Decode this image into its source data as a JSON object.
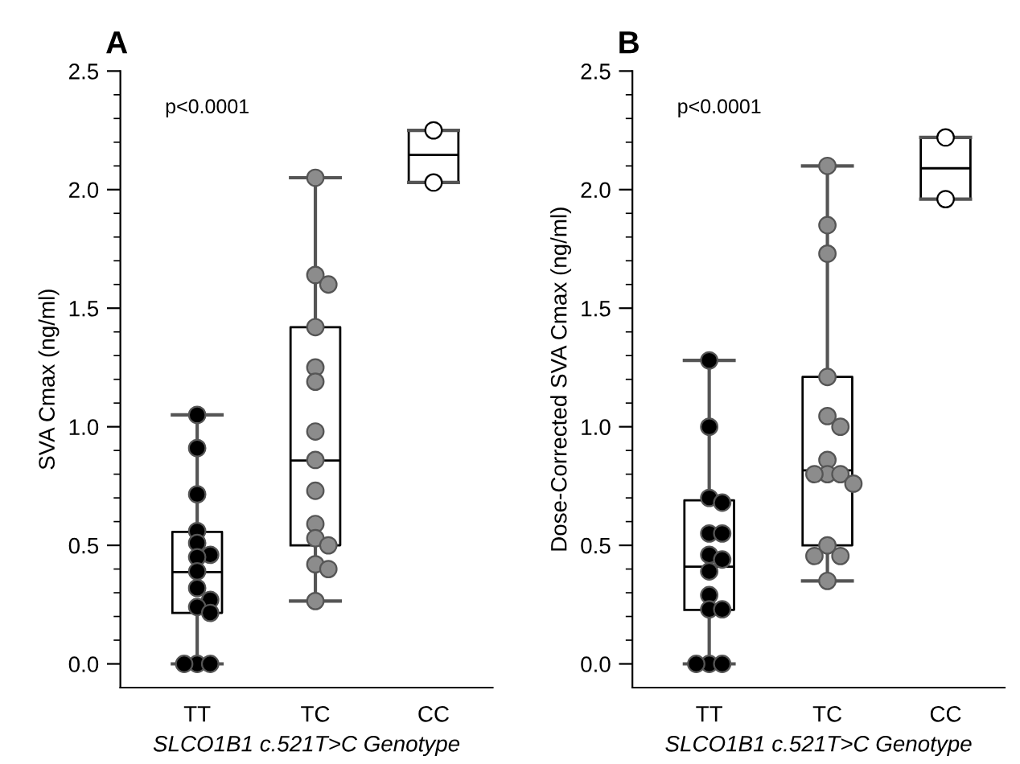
{
  "chart_data": [
    {
      "type": "box",
      "title": "A",
      "ylabel": "SVA Cmax (ng/ml)",
      "xlabel": "SLCO1B1 c.521T>C Genotype",
      "annotations": [
        "p<0.0001"
      ],
      "categories": [
        "TT",
        "TC",
        "CC"
      ],
      "boxes": [
        {
          "low": 0,
          "q1": 0.215,
          "median": 0.387,
          "q3": 0.557,
          "high": 1.05
        },
        {
          "low": 0.265,
          "q1": 0.5,
          "median": 0.858,
          "q3": 1.42,
          "high": 2.05
        },
        {
          "low": 2.03,
          "q1": 2.03,
          "median": 2.146,
          "q3": 2.25,
          "high": 2.25
        }
      ],
      "series": [
        {
          "type": "scatter",
          "color": "#000000",
          "x": [
            "TT",
            "TT",
            "TT",
            "TT",
            "TT",
            "TT",
            "TT",
            "TT",
            "TT",
            "TT",
            "TT",
            "TT",
            "TT",
            "TT",
            "TT"
          ],
          "values": [
            1.05,
            0.91,
            0.715,
            0.56,
            0.51,
            0.46,
            0.45,
            0.39,
            0.32,
            0.27,
            0.24,
            0.215,
            0,
            0,
            0
          ]
        },
        {
          "type": "scatter",
          "color": "#8c8c8c",
          "x": [
            "TC",
            "TC",
            "TC",
            "TC",
            "TC",
            "TC",
            "TC",
            "TC",
            "TC",
            "TC",
            "TC",
            "TC",
            "TC",
            "TC",
            "TC"
          ],
          "values": [
            2.05,
            1.64,
            1.6,
            1.42,
            1.25,
            1.19,
            0.98,
            0.86,
            0.73,
            0.59,
            0.53,
            0.5,
            0.42,
            0.4,
            0.265
          ]
        },
        {
          "type": "scatter",
          "color": "#ffffff",
          "x": [
            "CC",
            "CC"
          ],
          "values": [
            2.25,
            2.03
          ]
        }
      ],
      "ylim": [
        -0.1,
        2.5
      ],
      "yticks": [
        {
          "value": 0,
          "label": "0.0"
        },
        {
          "value": 0.1,
          "label": null
        },
        {
          "value": 0.2,
          "label": null
        },
        {
          "value": 0.3,
          "label": null
        },
        {
          "value": 0.4,
          "label": null
        },
        {
          "value": 0.5,
          "label": "0.5"
        },
        {
          "value": 0.6,
          "label": null
        },
        {
          "value": 0.7,
          "label": null
        },
        {
          "value": 0.8,
          "label": null
        },
        {
          "value": 0.9,
          "label": null
        },
        {
          "value": 1,
          "label": "1.0"
        },
        {
          "value": 1.1,
          "label": null
        },
        {
          "value": 1.2,
          "label": null
        },
        {
          "value": 1.3,
          "label": null
        },
        {
          "value": 1.4,
          "label": null
        },
        {
          "value": 1.5,
          "label": "1.5"
        },
        {
          "value": 1.6,
          "label": null
        },
        {
          "value": 1.7,
          "label": null
        },
        {
          "value": 1.8,
          "label": null
        },
        {
          "value": 1.9,
          "label": null
        },
        {
          "value": 2,
          "label": "2.0"
        },
        {
          "value": 2.1,
          "label": null
        },
        {
          "value": 2.2,
          "label": null
        },
        {
          "value": 2.3,
          "label": null
        },
        {
          "value": 2.4,
          "label": null
        },
        {
          "value": 2.5,
          "label": "2.5"
        }
      ],
      "marker": "circle",
      "grid": false,
      "legend": false
    },
    {
      "type": "box",
      "title": "B",
      "ylabel": "Dose-Corrected SVA Cmax (ng/ml)",
      "xlabel": "SLCO1B1 c.521T>C Genotype",
      "annotations": [
        "p<0.0001"
      ],
      "categories": [
        "TT",
        "TC",
        "CC"
      ],
      "boxes": [
        {
          "low": 0,
          "q1": 0.228,
          "median": 0.41,
          "q3": 0.69,
          "high": 1.28
        },
        {
          "low": 0.35,
          "q1": 0.5,
          "median": 0.816,
          "q3": 1.21,
          "high": 2.1
        },
        {
          "low": 1.96,
          "q1": 1.96,
          "median": 2.09,
          "q3": 2.22,
          "high": 2.22
        }
      ],
      "series": [
        {
          "type": "scatter",
          "color": "#000000",
          "x": [
            "TT",
            "TT",
            "TT",
            "TT",
            "TT",
            "TT",
            "TT",
            "TT",
            "TT",
            "TT",
            "TT",
            "TT",
            "TT",
            "TT",
            "TT"
          ],
          "values": [
            1.28,
            1.0,
            0.7,
            0.68,
            0.55,
            0.55,
            0.46,
            0.44,
            0.39,
            0.29,
            0.23,
            0.23,
            0,
            0,
            0
          ]
        },
        {
          "type": "scatter",
          "color": "#8c8c8c",
          "x": [
            "TC",
            "TC",
            "TC",
            "TC",
            "TC",
            "TC",
            "TC",
            "TC",
            "TC",
            "TC",
            "TC",
            "TC",
            "TC",
            "TC",
            "TC"
          ],
          "values": [
            2.1,
            1.85,
            1.73,
            1.21,
            1.045,
            1.0,
            0.86,
            0.8,
            0.8,
            0.8,
            0.76,
            0.5,
            0.455,
            0.455,
            0.35
          ]
        },
        {
          "type": "scatter",
          "color": "#ffffff",
          "x": [
            "CC",
            "CC"
          ],
          "values": [
            2.22,
            1.96
          ]
        }
      ],
      "ylim": [
        -0.1,
        2.5
      ],
      "yticks": [
        {
          "value": 0,
          "label": "0.0"
        },
        {
          "value": 0.1,
          "label": null
        },
        {
          "value": 0.2,
          "label": null
        },
        {
          "value": 0.3,
          "label": null
        },
        {
          "value": 0.4,
          "label": null
        },
        {
          "value": 0.5,
          "label": "0.5"
        },
        {
          "value": 0.6,
          "label": null
        },
        {
          "value": 0.7,
          "label": null
        },
        {
          "value": 0.8,
          "label": null
        },
        {
          "value": 0.9,
          "label": null
        },
        {
          "value": 1,
          "label": "1.0"
        },
        {
          "value": 1.1,
          "label": null
        },
        {
          "value": 1.2,
          "label": null
        },
        {
          "value": 1.3,
          "label": null
        },
        {
          "value": 1.4,
          "label": null
        },
        {
          "value": 1.5,
          "label": "1.5"
        },
        {
          "value": 1.6,
          "label": null
        },
        {
          "value": 1.7,
          "label": null
        },
        {
          "value": 1.8,
          "label": null
        },
        {
          "value": 1.9,
          "label": null
        },
        {
          "value": 2,
          "label": "2.0"
        },
        {
          "value": 2.1,
          "label": null
        },
        {
          "value": 2.2,
          "label": null
        },
        {
          "value": 2.3,
          "label": null
        },
        {
          "value": 2.4,
          "label": null
        },
        {
          "value": 2.5,
          "label": "2.5"
        }
      ],
      "marker": "circle",
      "grid": false,
      "legend": false
    }
  ]
}
